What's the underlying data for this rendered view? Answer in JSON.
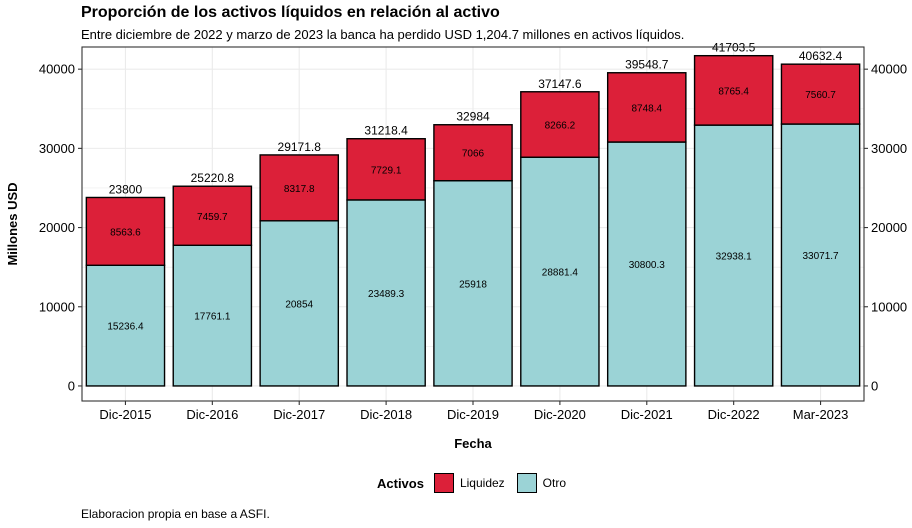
{
  "title": "Proporción de los activos líquidos en relación al activo",
  "subtitle": "Entre diciembre de 2022 y marzo de 2023 la banca ha perdido USD 1,204.7 millones en activos líquidos.",
  "caption": "Elaboracion propia en base a ASFI.",
  "colors": {
    "liquidez": "#DC2039",
    "otro": "#9BD3D6",
    "axis": "#333333",
    "grid": "#EBEBEB"
  },
  "chart_data": {
    "type": "bar",
    "stacked": true,
    "title": "Proporción de los activos líquidos en relación al activo",
    "subtitle": "Entre diciembre de 2022 y marzo de 2023 la banca ha perdido USD 1,204.7 millones en activos líquidos.",
    "xlabel": "Fecha",
    "ylabel": "Millones USD",
    "categories": [
      "Dic-2015",
      "Dic-2016",
      "Dic-2017",
      "Dic-2018",
      "Dic-2019",
      "Dic-2020",
      "Dic-2021",
      "Dic-2022",
      "Mar-2023"
    ],
    "series": [
      {
        "name": "Otro",
        "color": "#9BD3D6",
        "values": [
          15236.4,
          17761.1,
          20854,
          23489.3,
          25918,
          28881.4,
          30800.3,
          32938.1,
          33071.7
        ]
      },
      {
        "name": "Liquidez",
        "color": "#DC2039",
        "values": [
          8563.6,
          7459.7,
          8317.8,
          7729.1,
          7066,
          8266.2,
          8748.4,
          8765.4,
          7560.7
        ]
      }
    ],
    "totals": [
      23800,
      25220.8,
      29171.8,
      31218.4,
      32984,
      37147.6,
      39548.7,
      41703.5,
      40632.4
    ],
    "yticks": [
      0,
      10000,
      20000,
      30000,
      40000
    ],
    "ylim": [
      -1900,
      42800
    ],
    "secondary_y_axis": true,
    "grid": true,
    "legend": {
      "title": "Activos",
      "entries": [
        "Liquidez",
        "Otro"
      ],
      "position": "bottom"
    }
  }
}
